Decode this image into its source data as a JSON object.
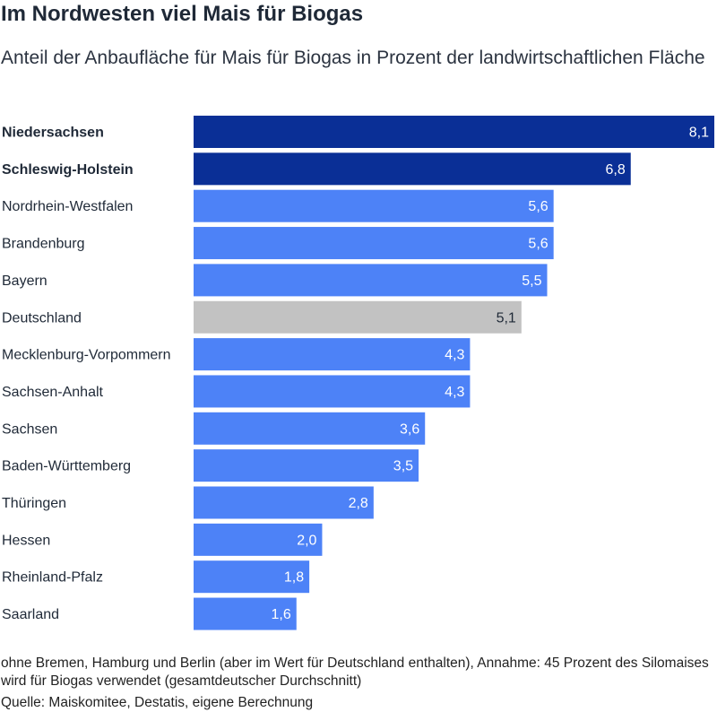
{
  "title": "Im Nordwesten viel Mais für Biogas",
  "subtitle": "Anteil der Anbaufläche für Mais für Biogas in Prozent der landwirtschaftlichen Fläche",
  "footnote": "ohne Bremen, Hamburg und Berlin (aber im Wert für Deutschland enthalten), Annahme: 45 Prozent des Silomaises wird für Biogas verwendet (gesamtdeutscher Durchschnitt)",
  "source": "Quelle: Maiskomitee, Destatis, eigene Berechnung",
  "colors": {
    "highlight": "#0a2f96",
    "default": "#4d82f7",
    "reference": "#c2c2c2"
  },
  "chart_data": {
    "type": "bar",
    "orientation": "horizontal",
    "title": "Im Nordwesten viel Mais für Biogas",
    "subtitle": "Anteil der Anbaufläche für Mais für Biogas in Prozent der landwirtschaftlichen Fläche",
    "xlim": [
      0,
      8.1
    ],
    "grid": false,
    "legend": "none",
    "categories": [
      "Niedersachsen",
      "Schleswig-Holstein",
      "Nordrhein-Westfalen",
      "Brandenburg",
      "Bayern",
      "Deutschland",
      "Mecklenburg-Vorpommern",
      "Sachsen-Anhalt",
      "Sachsen",
      "Baden-Württemberg",
      "Thüringen",
      "Hessen",
      "Rheinland-Pfalz",
      "Saarland"
    ],
    "values": [
      8.1,
      6.8,
      5.6,
      5.6,
      5.5,
      5.1,
      4.3,
      4.3,
      3.6,
      3.5,
      2.8,
      2.0,
      1.8,
      1.6
    ],
    "value_labels": [
      "8,1",
      "6,8",
      "5,6",
      "5,6",
      "5,5",
      "5,1",
      "4,3",
      "4,3",
      "3,6",
      "3,5",
      "2,8",
      "2,0",
      "1,8",
      "1,6"
    ],
    "highlighted": [
      "Niedersachsen",
      "Schleswig-Holstein"
    ],
    "reference": [
      "Deutschland"
    ]
  }
}
